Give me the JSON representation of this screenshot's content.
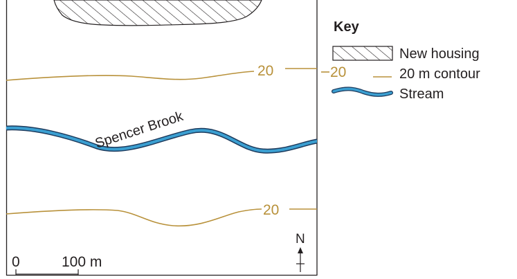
{
  "map": {
    "stream_name": "Spencer Brook",
    "contour_value_top": "20",
    "contour_value_bottom": "20",
    "north_label": "N",
    "scale": {
      "start_label": "0",
      "end_label": "100 m"
    }
  },
  "key": {
    "title": "Key",
    "items": [
      {
        "symbol": "hatched-area",
        "label": "New housing"
      },
      {
        "symbol": "contour-line",
        "symbol_text": "20",
        "label": "20 m contour"
      },
      {
        "symbol": "stream-line",
        "label": "Stream"
      }
    ]
  },
  "colors": {
    "contour": "#b8913a",
    "stream_fill": "#3b9fd1",
    "stream_edge": "#1d3a5c",
    "outline": "#231f20",
    "housing_fill": "#ffffff"
  }
}
